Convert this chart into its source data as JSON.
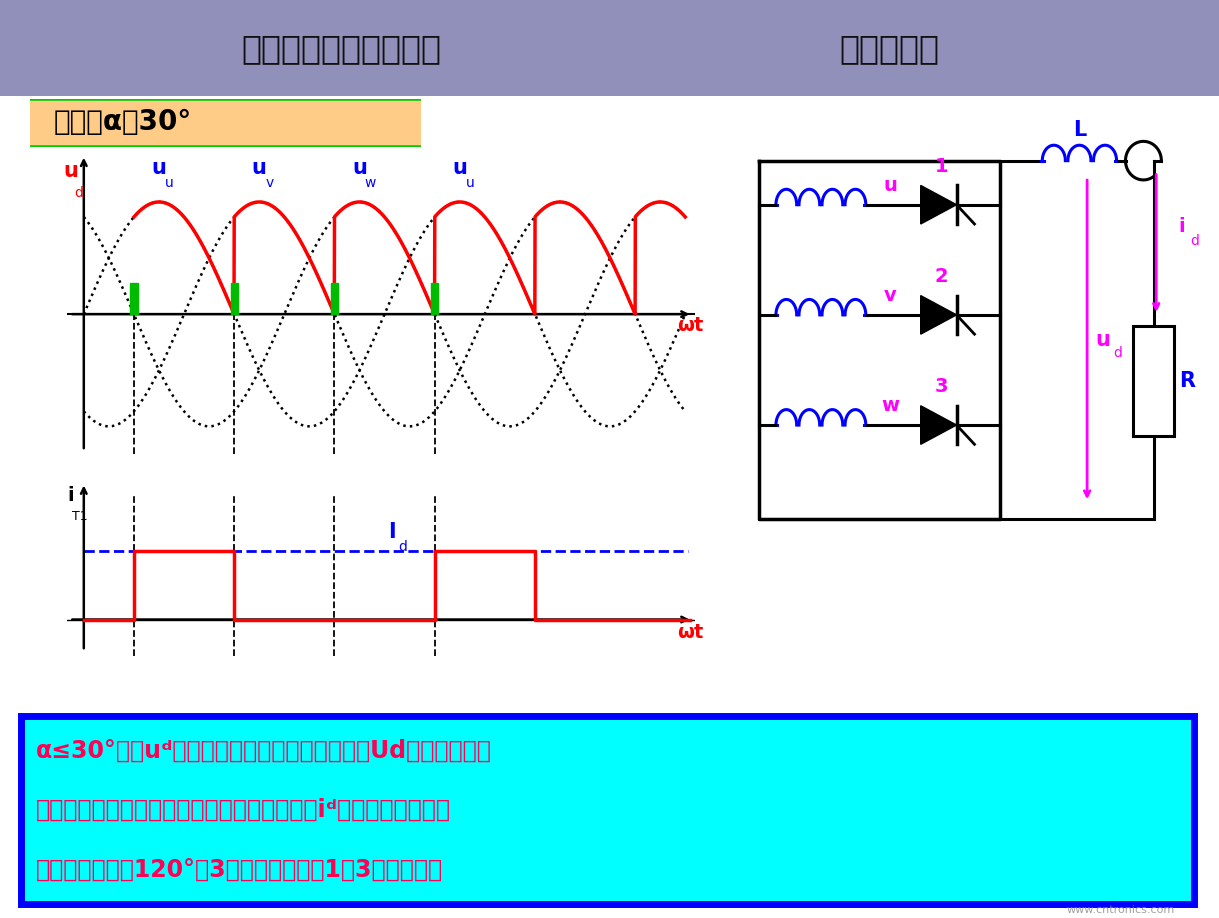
{
  "title_left": "三相半波可控整流电路",
  "title_right": "电感性负载",
  "title_bg": "#9090bb",
  "control_angle_text": "控制角α＝30°",
  "control_angle_box_bg": "#ffcc88",
  "control_angle_box_border": "#00cc00",
  "bottom_bg": "#00ffff",
  "bottom_border": "#0000ff",
  "bottom_text_color": "#ff0055",
  "watermark": "www.cntronics.com",
  "alpha_deg": 30,
  "circuit_color": "#000000",
  "coil_color": "#0000ff",
  "phase_label_color": "#ff00ff",
  "number_color": "#ff00ff",
  "ud_color": "#ff00ff",
  "id_color": "#ff00ff",
  "R_color": "#0000ff",
  "L_color": "#0000ff"
}
